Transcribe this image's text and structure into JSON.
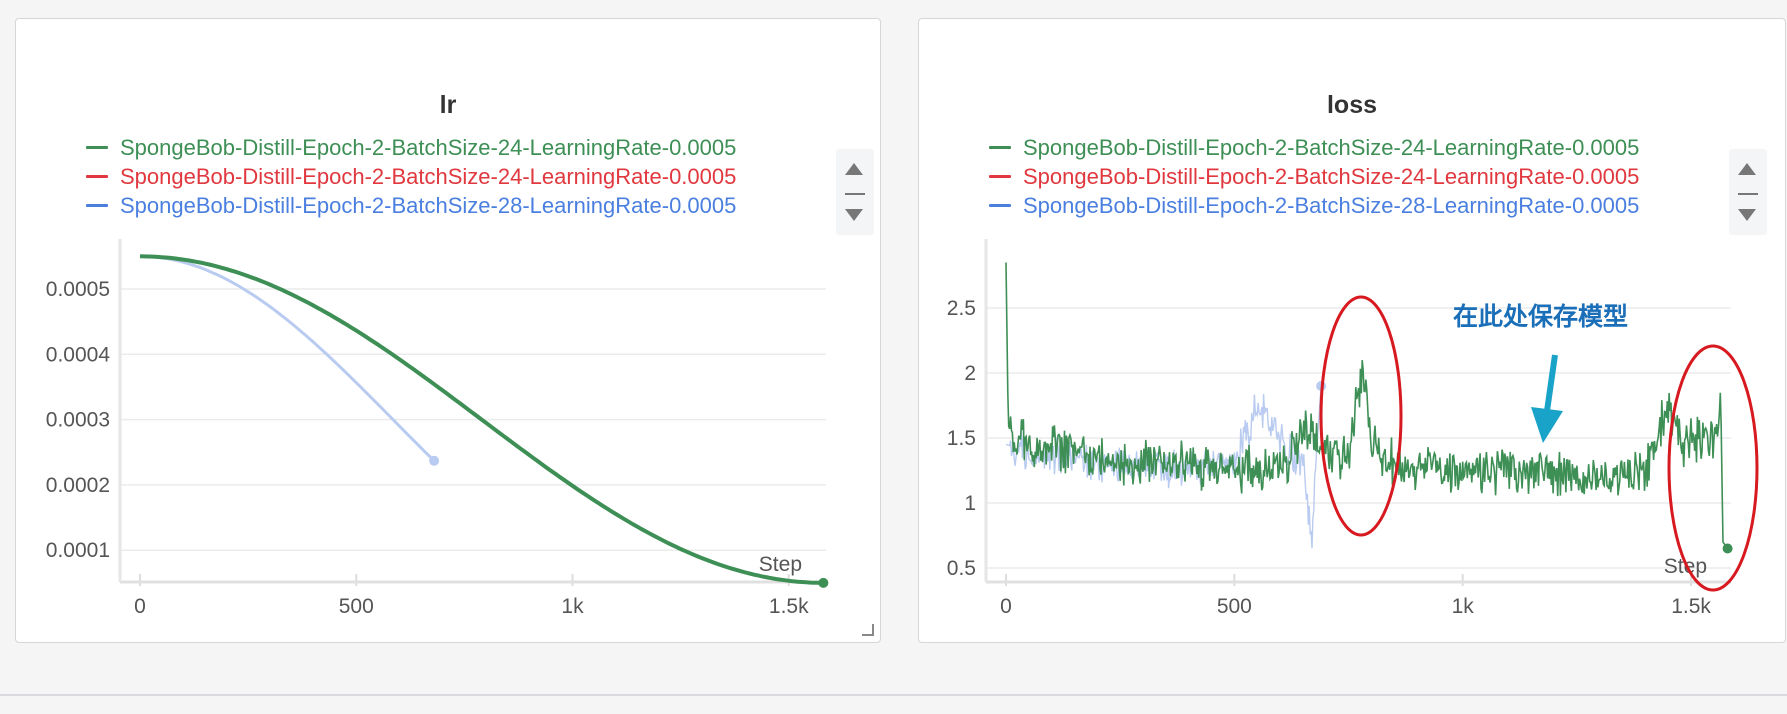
{
  "colors": {
    "run1": "#3e8f55",
    "run2": "#e0383e",
    "run3": "#4a7fe0",
    "run3_faded": "#b9cbf0",
    "annotation": "#1b6fb8",
    "arrow": "#1aa3c9",
    "circle": "#d71920"
  },
  "chart_data": [
    {
      "type": "line",
      "title": "lr",
      "xlabel": "Step",
      "ylabel": "",
      "xlim": [
        0,
        1600
      ],
      "ylim": [
        5e-05,
        0.00055
      ],
      "x_ticks": [
        "0",
        "500",
        "1k",
        "1.5k"
      ],
      "y_ticks": [
        "0.0005",
        "0.0004",
        "0.0003",
        "0.0002",
        "0.0001"
      ],
      "grid": true,
      "legend": "top",
      "series": [
        {
          "name": "SpongeBob-Distill-Epoch-2-BatchSize-24-LearningRate-0.0005",
          "color": "#3e8f55",
          "x": [
            0,
            1580
          ],
          "lr_max": 0.00055,
          "lr_min": 5e-05
        },
        {
          "name": "SpongeBob-Distill-Epoch-2-BatchSize-24-LearningRate-0.0005",
          "color": "#e0383e",
          "x": [],
          "y": []
        },
        {
          "name": "SpongeBob-Distill-Epoch-2-BatchSize-28-LearningRate-0.0005",
          "color": "#4a7fe0",
          "x": [
            0,
            680
          ],
          "x_end_value": 0.0003,
          "lr_max": 0.00055,
          "lr_min": 5e-05
        }
      ]
    },
    {
      "type": "line",
      "title": "loss",
      "xlabel": "Step",
      "ylabel": "",
      "xlim": [
        0,
        1600
      ],
      "ylim": [
        0.45,
        2.75
      ],
      "x_ticks": [
        "0",
        "500",
        "1k",
        "1.5k"
      ],
      "y_ticks": [
        "2.5",
        "2",
        "1.5",
        "1",
        "0.5"
      ],
      "grid": true,
      "legend": "top",
      "annotation": "在此处保存模型",
      "series": [
        {
          "name": "SpongeBob-Distill-Epoch-2-BatchSize-24-LearningRate-0.0005",
          "color": "#3e8f55",
          "x": [
            0,
            5,
            15,
            50,
            100,
            200,
            300,
            400,
            500,
            600,
            650,
            700,
            750,
            780,
            800,
            850,
            900,
            1000,
            1100,
            1200,
            1300,
            1350,
            1400,
            1450,
            1480,
            1500,
            1550,
            1565,
            1570,
            1580
          ],
          "y": [
            2.85,
            1.6,
            1.5,
            1.45,
            1.42,
            1.35,
            1.3,
            1.28,
            1.25,
            1.25,
            1.55,
            1.4,
            1.35,
            2.05,
            1.45,
            1.3,
            1.28,
            1.25,
            1.25,
            1.22,
            1.2,
            1.2,
            1.22,
            1.75,
            1.45,
            1.5,
            1.5,
            1.75,
            0.7,
            0.65
          ]
        },
        {
          "name": "SpongeBob-Distill-Epoch-2-BatchSize-24-LearningRate-0.0005",
          "color": "#e0383e",
          "x": [],
          "y": []
        },
        {
          "name": "SpongeBob-Distill-Epoch-2-BatchSize-28-LearningRate-0.0005",
          "color": "#b9cbf0",
          "x": [
            0,
            50,
            100,
            200,
            300,
            400,
            500,
            550,
            600,
            650,
            670,
            680,
            690
          ],
          "y": [
            1.45,
            1.4,
            1.35,
            1.3,
            1.28,
            1.25,
            1.3,
            1.75,
            1.5,
            1.3,
            0.7,
            1.4,
            1.9
          ]
        }
      ]
    }
  ]
}
